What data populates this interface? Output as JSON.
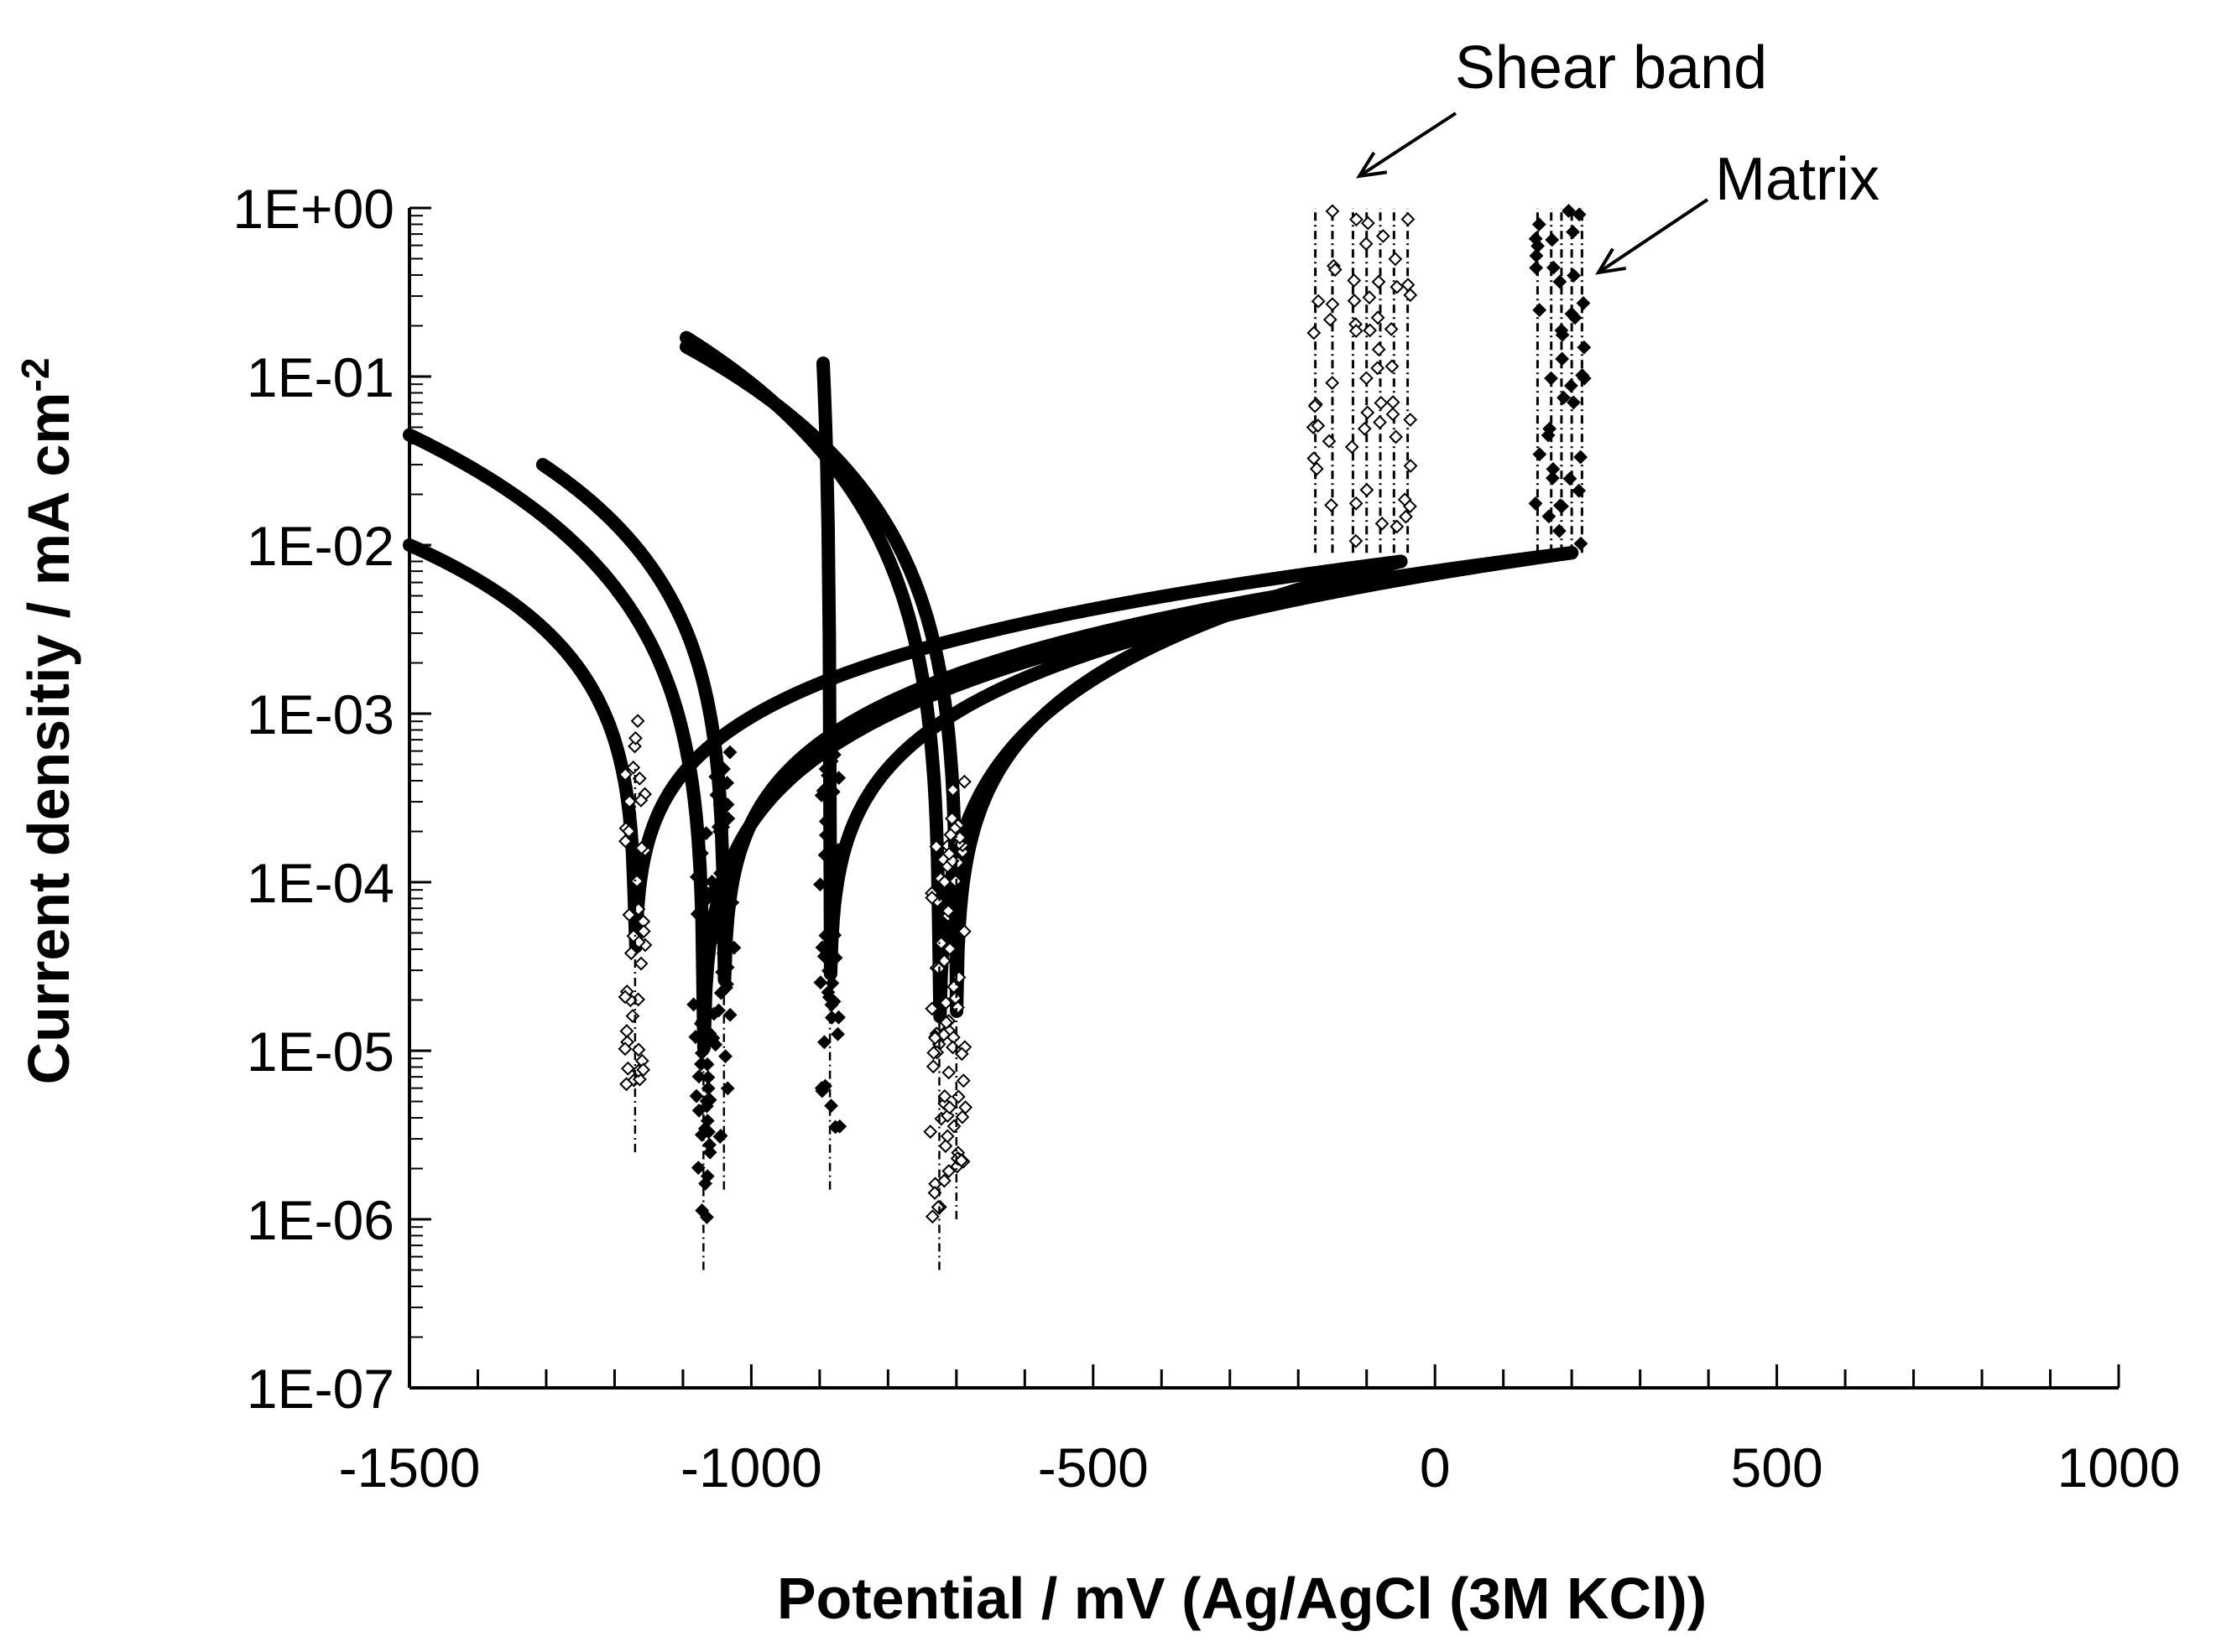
{
  "chart_data": {
    "type": "scatter",
    "title": "",
    "xlabel": "Potential / mV (Ag/AgCl (3M KCl))",
    "ylabel": {
      "main": "Current densitiy / mA cm",
      "superscript": "-2"
    },
    "xscale": "linear",
    "yscale": "log",
    "xlim": [
      -1500,
      1000
    ],
    "ylim": [
      1e-07,
      1
    ],
    "x_ticks": [
      -1500,
      -1000,
      -500,
      0,
      500,
      1000
    ],
    "x_tick_labels": [
      "-1500",
      "-1000",
      "-500",
      "0",
      "500",
      "1000"
    ],
    "y_ticks": [
      1e-07,
      1e-06,
      1e-05,
      0.0001,
      0.001,
      0.01,
      0.1,
      1
    ],
    "y_tick_labels": [
      "1E-07",
      "1E-06",
      "1E-05",
      "1E-04",
      "1E-03",
      "1E-02",
      "1E-01",
      "1E+00"
    ],
    "legend": "none",
    "grid": false,
    "annotations": [
      {
        "text": "Shear band",
        "points_to": {
          "x": -100,
          "y": 1.0
        }
      },
      {
        "text": "Matrix",
        "points_to": {
          "x": 250,
          "y": 0.4
        }
      }
    ],
    "series": [
      {
        "name": "Matrix",
        "marker": "filled-diamond",
        "curves": [
          {
            "corr_potential": -1070,
            "j_corr": 1e-06,
            "start_x": -1500,
            "start_y": 0.045,
            "end_x": 200,
            "end_y": 0.009
          },
          {
            "corr_potential": -1040,
            "j_corr": 3e-06,
            "start_x": -1305,
            "start_y": 0.03,
            "end_x": 200,
            "end_y": 0.009
          },
          {
            "corr_potential": -885,
            "j_corr": 3e-06,
            "start_x": -895,
            "start_y": 0.12,
            "end_x": 200,
            "end_y": 0.009
          }
        ],
        "spikes_x": [
          150,
          170,
          185,
          200,
          215
        ]
      },
      {
        "name": "Shear band",
        "marker": "open-diamond",
        "curves": [
          {
            "corr_potential": -1170,
            "j_corr": 5e-06,
            "start_x": -1500,
            "start_y": 0.01,
            "end_x": -50,
            "end_y": 0.008
          },
          {
            "corr_potential": -725,
            "j_corr": 1e-06,
            "start_x": -1095,
            "start_y": 0.17,
            "end_x": -50,
            "end_y": 0.008
          },
          {
            "corr_potential": -700,
            "j_corr": 2e-06,
            "start_x": -1095,
            "start_y": 0.15,
            "end_x": -50,
            "end_y": 0.008
          }
        ],
        "spikes_x": [
          -175,
          -150,
          -120,
          -100,
          -80,
          -60,
          -40
        ]
      }
    ]
  }
}
